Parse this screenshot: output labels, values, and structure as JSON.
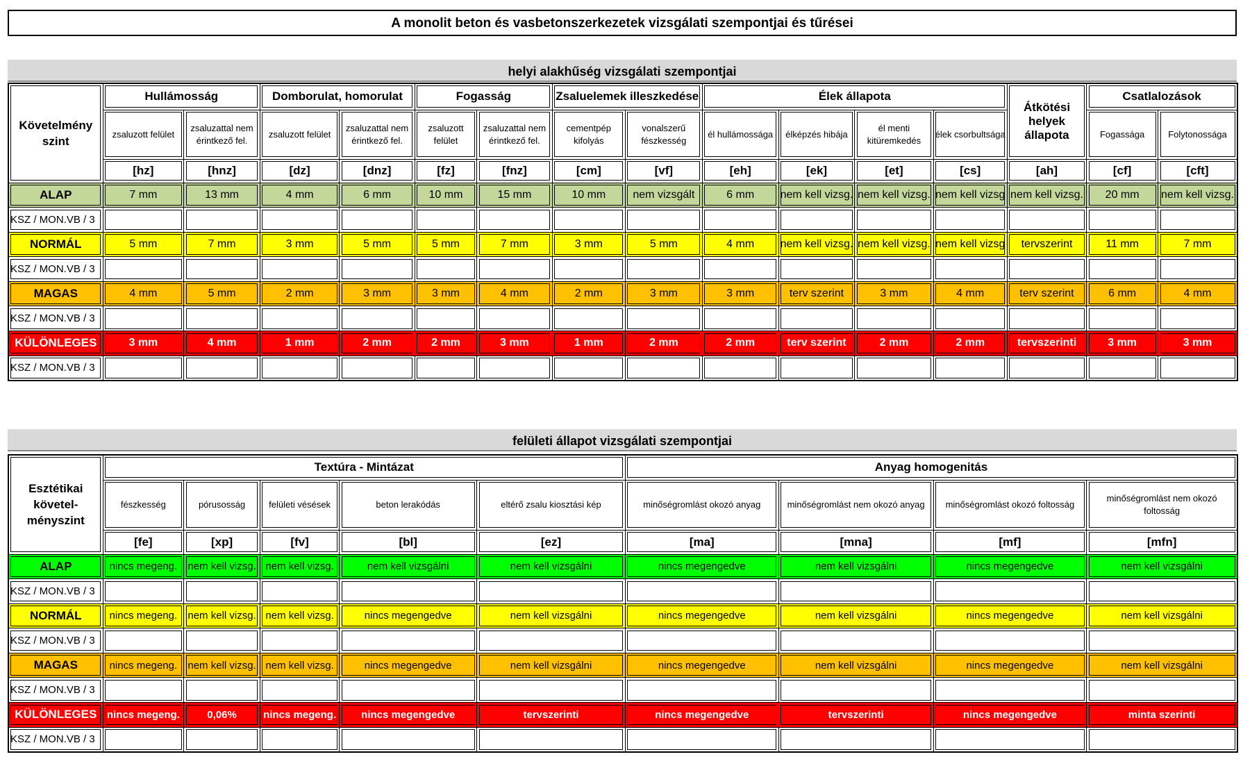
{
  "title": "A monolit beton és vasbetonszerkezetek vizsgálati szempontjai és tűrései",
  "sections": [
    {
      "heading": "helyi alakhűség vizsgálati szempontjai",
      "corner": "Követelmény szint",
      "groups": [
        {
          "name": "Hullámosság",
          "columns": [
            {
              "name": "zsaluzott felület",
              "code": "[hz]"
            },
            {
              "name": "zsaluzattal nem érintkező fel.",
              "code": "[hnz]"
            }
          ]
        },
        {
          "name": "Domborulat, homorulat",
          "columns": [
            {
              "name": "zsaluzott felület",
              "code": "[dz]"
            },
            {
              "name": "zsaluzattal nem érintkező fel.",
              "code": "[dnz]"
            }
          ]
        },
        {
          "name": "Fogasság",
          "columns": [
            {
              "name": "zsaluzott felület",
              "code": "[fz]"
            },
            {
              "name": "zsaluzattal nem érintkező fel.",
              "code": "[fnz]"
            }
          ]
        },
        {
          "name": "Zsaluelemek illeszkedése",
          "columns": [
            {
              "name": "cementpép kifolyás",
              "code": "[cm]"
            },
            {
              "name": "vonalszerű fészkesség",
              "code": "[vf]"
            }
          ]
        },
        {
          "name": "Élek állapota",
          "columns": [
            {
              "name": "él hullámossága",
              "code": "[eh]"
            },
            {
              "name": "élképzés hibája",
              "code": "[ek]"
            },
            {
              "name": "él menti kitüremkedés",
              "code": "[et]"
            },
            {
              "name": "élek csorbultsága",
              "code": "[cs]"
            }
          ]
        },
        {
          "name": "Átkötési helyek állapota",
          "columns": [
            {
              "code": "[ah]"
            }
          ]
        },
        {
          "name": "Csatlalozások",
          "columns": [
            {
              "name": "Fogassága",
              "code": "[cf]"
            },
            {
              "name": "Folytonossága",
              "code": "[cft]"
            }
          ]
        }
      ],
      "rows": [
        {
          "level": "ALAP",
          "values": [
            "7 mm",
            "13 mm",
            "4 mm",
            "6 mm",
            "10 mm",
            "15 mm",
            "10 mm",
            "nem vizsgált",
            "6 mm",
            "nem kell vizsg.",
            "nem kell vizsg.",
            "nem kell vizsg",
            "nem kell vizsg.",
            "20 mm",
            "nem kell vizsg."
          ],
          "note": "KSZ / MON.VB / 3"
        },
        {
          "level": "NORMÁL",
          "values": [
            "5 mm",
            "7 mm",
            "3 mm",
            "5 mm",
            "5 mm",
            "7 mm",
            "3 mm",
            "5 mm",
            "4 mm",
            "nem kell vizsg.",
            "nem kell vizsg.",
            "nem kell vizsg",
            "tervszerint",
            "11 mm",
            "7 mm"
          ],
          "note": "KSZ / MON.VB / 3"
        },
        {
          "level": "MAGAS",
          "values": [
            "4 mm",
            "5 mm",
            "2 mm",
            "3 mm",
            "3 mm",
            "4 mm",
            "2 mm",
            "3 mm",
            "3 mm",
            "terv szerint",
            "3 mm",
            "4 mm",
            "terv szerint",
            "6 mm",
            "4 mm"
          ],
          "note": "KSZ / MON.VB / 3"
        },
        {
          "level": "KÜLÖNLEGES",
          "values": [
            "3 mm",
            "4 mm",
            "1 mm",
            "2 mm",
            "2 mm",
            "3 mm",
            "1 mm",
            "2 mm",
            "2 mm",
            "terv szerint",
            "2 mm",
            "2 mm",
            "tervszerinti",
            "3 mm",
            "3 mm"
          ],
          "note": "KSZ / MON.VB / 3"
        }
      ]
    },
    {
      "heading": "felületi állapot vizsgálati szempontjai",
      "corner": "Esztétikai követel-ményszint",
      "groups": [
        {
          "name": "Textúra - Mintázat",
          "columns": [
            {
              "name": "fészkesség",
              "code": "[fe]"
            },
            {
              "name": "pórusosság",
              "code": "[xp]"
            },
            {
              "name": "felületi vésések",
              "code": "[fv]"
            },
            {
              "name": "beton lerakódás",
              "code": "[bl]"
            },
            {
              "name": "eltérő zsalu kiosztási kép",
              "code": "[ez]"
            }
          ]
        },
        {
          "name": "Anyag homogenitás",
          "columns": [
            {
              "name": "minőségromlást okozó anyag",
              "code": "[ma]"
            },
            {
              "name": "minőségromlást nem okozó anyag",
              "code": "[mna]"
            },
            {
              "name": "minőségromlást okozó foltosság",
              "code": "[mf]"
            },
            {
              "name": "minőségromlást nem okozó foltosság",
              "code": "[mfn]"
            }
          ]
        }
      ],
      "rows": [
        {
          "level": "ALAP",
          "values": [
            "nincs megeng.",
            "nem kell vizsg.",
            "nem kell vizsg.",
            "nem kell vizsgálni",
            "nem kell vizsgálni",
            "nincs megengedve",
            "nem kell vizsgálni",
            "nincs megengedve",
            "nem kell vizsgálni"
          ],
          "note": "KSZ / MON.VB / 3"
        },
        {
          "level": "NORMÁL",
          "values": [
            "nincs megeng.",
            "nem kell vizsg.",
            "nem kell vizsg.",
            "nincs megengedve",
            "nem kell vizsgálni",
            "nincs megengedve",
            "nem kell vizsgálni",
            "nincs megengedve",
            "nem kell vizsgálni"
          ],
          "note": "KSZ / MON.VB / 3"
        },
        {
          "level": "MAGAS",
          "values": [
            "nincs megeng.",
            "nem kell vizsg.",
            "nem kell vizsg.",
            "nincs megengedve",
            "nem kell vizsgálni",
            "nincs megengedve",
            "nem kell vizsgálni",
            "nincs megengedve",
            "nem kell vizsgálni"
          ],
          "note": "KSZ / MON.VB / 3"
        },
        {
          "level": "KÜLÖNLEGES",
          "values": [
            "nincs megeng.",
            "0,06%",
            "nincs megeng.",
            "nincs megengedve",
            "tervszerinti",
            "nincs megengedve",
            "tervszerinti",
            "nincs megengedve",
            "minta szerinti"
          ],
          "note": "KSZ / MON.VB / 3"
        }
      ]
    }
  ]
}
